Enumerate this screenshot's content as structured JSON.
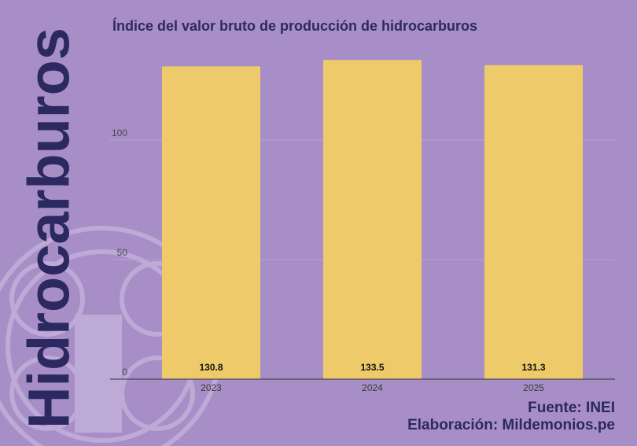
{
  "chart_data": {
    "type": "bar",
    "title": "Índice del valor bruto de producción de hidrocarburos",
    "side_title": "Hidrocarburos",
    "source": "Fuente: INEI",
    "credit": "Elaboración: Mildemonios.pe",
    "categories": [
      "2023",
      "2024",
      "2025"
    ],
    "values": [
      130.8,
      133.5,
      131.3
    ],
    "color": "#eeca6a",
    "ylim": [
      0,
      140
    ],
    "yticks": [
      0,
      50,
      100
    ],
    "grid": true
  }
}
